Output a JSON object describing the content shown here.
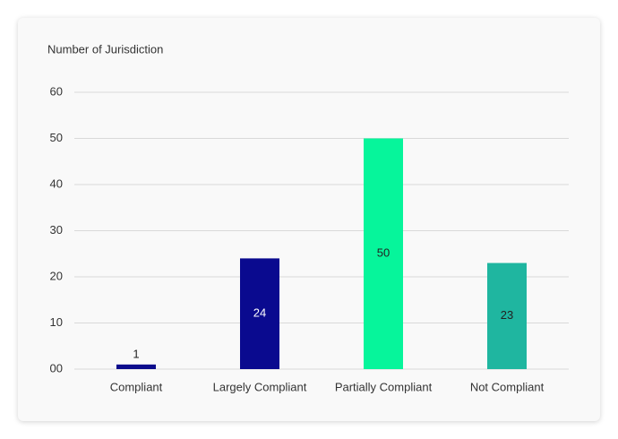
{
  "chart_data": {
    "type": "bar",
    "title": "Number of Jurisdiction",
    "categories": [
      "Compliant",
      "Largely Compliant",
      "Partially Compliant",
      "Not Compliant"
    ],
    "values": [
      1,
      24,
      50,
      23
    ],
    "colors": [
      "#0c0c8c",
      "#0a0a8f",
      "#06f59b",
      "#1fb6a0"
    ],
    "ylim": [
      0,
      60
    ],
    "yticks": [
      {
        "value": 0,
        "label": "00"
      },
      10,
      20,
      30,
      40,
      50,
      60
    ],
    "grid": true
  }
}
